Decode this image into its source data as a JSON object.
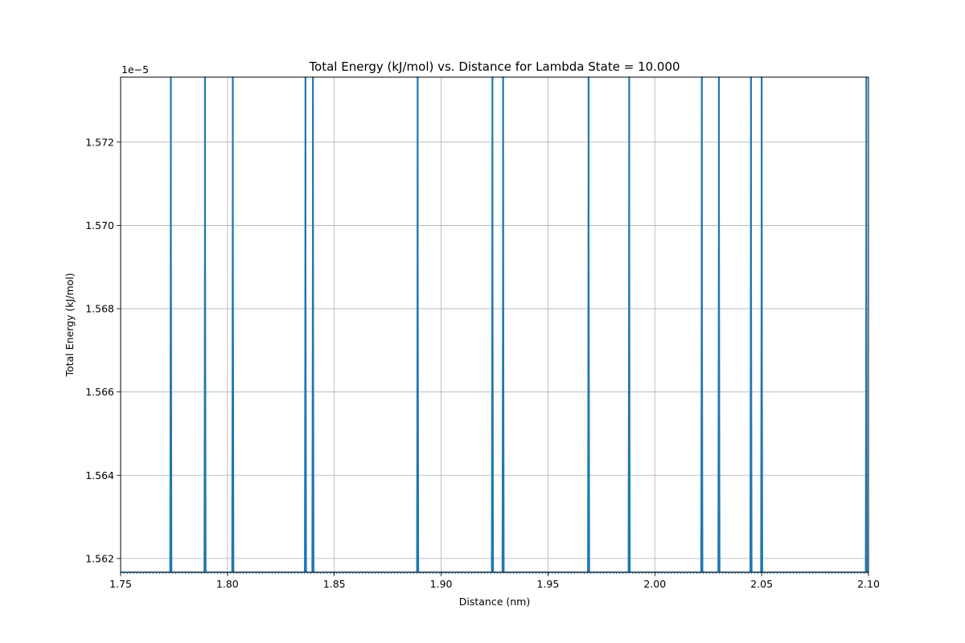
{
  "chart_data": {
    "type": "line",
    "title": "Total Energy (kJ/mol) vs. Distance for Lambda State = 10.000",
    "xlabel": "Distance (nm)",
    "ylabel": "Total Energy (kJ/mol)",
    "y_offset_label": "1e−5",
    "xlim": [
      1.75,
      2.1
    ],
    "ylim": [
      1.56167,
      1.57356
    ],
    "x_ticks": [
      1.75,
      1.8,
      1.85,
      1.9,
      1.95,
      2.0,
      2.05,
      2.1
    ],
    "x_tick_labels": [
      "1.75",
      "1.80",
      "1.85",
      "1.90",
      "1.95",
      "2.00",
      "2.05",
      "2.10"
    ],
    "y_ticks": [
      1.562,
      1.564,
      1.566,
      1.568,
      1.57,
      1.572
    ],
    "y_tick_labels": [
      "1.562",
      "1.564",
      "1.566",
      "1.568",
      "1.570",
      "1.572"
    ],
    "grid": true,
    "series": [
      {
        "color": "#1f77b4",
        "baseline": 1.56167,
        "spike_height": 1.57356,
        "spike_x": [
          1.7735,
          1.7895,
          1.8025,
          1.8365,
          1.84,
          1.889,
          1.924,
          1.929,
          1.969,
          1.988,
          2.022,
          2.03,
          2.045,
          2.05,
          2.099
        ]
      }
    ]
  }
}
